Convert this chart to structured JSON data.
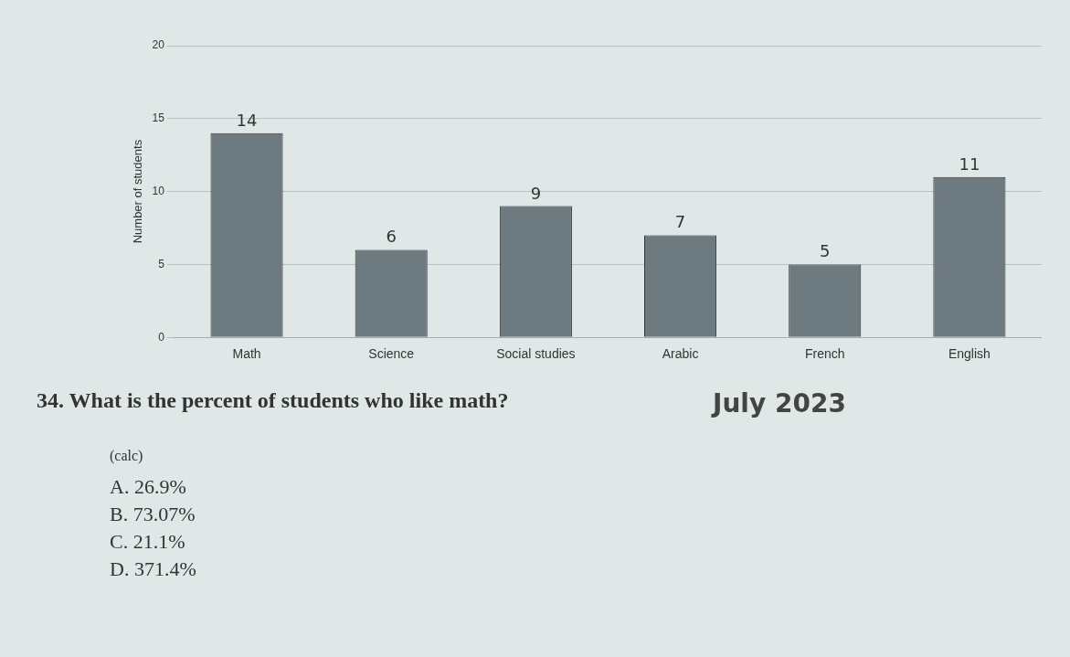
{
  "chart_data": {
    "type": "bar",
    "ylabel": "Number of students",
    "categories": [
      "Math",
      "Science",
      "Social studies",
      "Arabic",
      "French",
      "English"
    ],
    "values": [
      14,
      6,
      9,
      7,
      5,
      11
    ],
    "color": "#6d7b80",
    "data_labels": true,
    "ylim": [
      0,
      20
    ],
    "yticks": [
      0,
      5,
      10,
      15,
      20
    ],
    "grid": "y",
    "annotations": [
      "34. What is the percent of students who like math?",
      "July 2023",
      "(calc)",
      "A. 26.9%",
      "B. 73.07%",
      "C. 21.1%",
      "D. 371.4%"
    ]
  }
}
